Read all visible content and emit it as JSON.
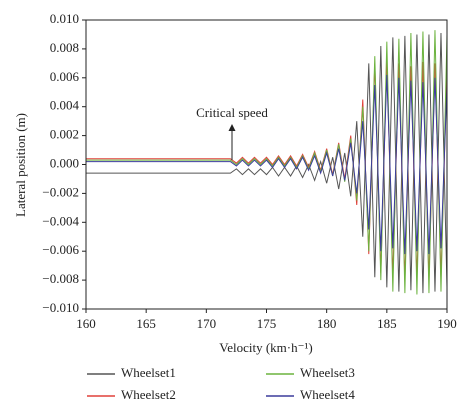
{
  "chart_data": {
    "type": "line",
    "xlabel": "Velocity (km·h⁻¹)",
    "ylabel": "Lateral position (m)",
    "annotation": "Critical speed",
    "xlim": [
      160,
      190
    ],
    "xticks": [
      160,
      165,
      170,
      175,
      180,
      185,
      190
    ],
    "ylim": [
      -0.01,
      0.01
    ],
    "yticks": [
      {
        "value": -0.01,
        "label": "−0.010"
      },
      {
        "value": -0.008,
        "label": "−0.008"
      },
      {
        "value": -0.006,
        "label": "−0.006"
      },
      {
        "value": -0.004,
        "label": "−0.004"
      },
      {
        "value": -0.002,
        "label": "−0.002"
      },
      {
        "value": 0,
        "label": "0.000"
      },
      {
        "value": 0.002,
        "label": "0.002"
      },
      {
        "value": 0.004,
        "label": "0.004"
      },
      {
        "value": 0.006,
        "label": "0.006"
      },
      {
        "value": 0.008,
        "label": "0.008"
      },
      {
        "value": 0.01,
        "label": "0.010"
      }
    ],
    "x": [
      160,
      172,
      172.5,
      173,
      173.5,
      174,
      174.5,
      175,
      175.5,
      176,
      176.5,
      177,
      177.5,
      178,
      178.5,
      179,
      179.5,
      180,
      180.5,
      181,
      181.5,
      182,
      182.5,
      183,
      183.5,
      184,
      184.5,
      185,
      185.5,
      186,
      186.5,
      187,
      187.5,
      188,
      188.5,
      189,
      189.5,
      190
    ],
    "series": [
      {
        "name": "Wheelset1",
        "color": "#555555",
        "values": [
          -0.0006,
          -0.0006,
          -0.0003,
          -0.0007,
          -0.0003,
          -0.0007,
          -0.0003,
          -0.0007,
          -0.0002,
          -0.0008,
          -0.0002,
          -0.0008,
          -0.0001,
          -0.0009,
          0,
          -0.0011,
          0.0002,
          -0.0013,
          0.0005,
          -0.0017,
          0.0008,
          -0.0022,
          0.003,
          -0.005,
          0.007,
          -0.0078,
          0.0082,
          -0.0085,
          0.0088,
          -0.0088,
          0.0089,
          -0.0087,
          0.009,
          -0.0089,
          0.009,
          -0.0088,
          0.0091,
          -0.0085
        ]
      },
      {
        "name": "Wheelset2",
        "color": "#e0403a",
        "values": [
          0.0004,
          0.0004,
          0.0001,
          0.0005,
          0.0001,
          0.0005,
          0.0001,
          0.0005,
          0,
          0.0006,
          0,
          0.0006,
          -0.0001,
          0.0007,
          -0.0002,
          0.0009,
          -0.0004,
          0.0011,
          -0.0007,
          0.0015,
          -0.001,
          0.002,
          -0.0028,
          0.0045,
          -0.0062,
          0.007,
          -0.0075,
          0.0072,
          -0.0078,
          0.007,
          -0.008,
          0.0068,
          -0.0079,
          0.0071,
          -0.008,
          0.007,
          -0.0078,
          0.0068
        ]
      },
      {
        "name": "Wheelset3",
        "color": "#6cb33f",
        "values": [
          0.0003,
          0.0003,
          0,
          0.0004,
          0,
          0.0004,
          0,
          0.0004,
          -0.0001,
          0.0005,
          -0.0001,
          0.0005,
          -0.0002,
          0.0006,
          -0.0003,
          0.0008,
          -0.0005,
          0.001,
          -0.0008,
          0.0014,
          -0.0012,
          0.0018,
          -0.0025,
          0.004,
          -0.006,
          0.0075,
          -0.008,
          0.0085,
          -0.0088,
          0.0087,
          -0.0089,
          0.0091,
          -0.009,
          0.0092,
          -0.0089,
          0.0093,
          -0.0088,
          0.009
        ]
      },
      {
        "name": "Wheelset4",
        "color": "#3c3c9c",
        "values": [
          0.0002,
          0.0002,
          -0.0001,
          0.0003,
          -0.0001,
          0.0003,
          -0.0001,
          0.0003,
          -0.0002,
          0.0004,
          -0.0002,
          0.0004,
          -0.0003,
          0.0005,
          -0.0004,
          0.0006,
          -0.0006,
          0.0008,
          -0.0008,
          0.0011,
          -0.0011,
          0.0015,
          -0.002,
          0.003,
          -0.0045,
          0.0055,
          -0.006,
          0.0062,
          -0.0058,
          0.006,
          -0.0062,
          0.0058,
          -0.006,
          0.0057,
          -0.0062,
          0.006,
          -0.0058,
          0.0055
        ]
      }
    ]
  }
}
